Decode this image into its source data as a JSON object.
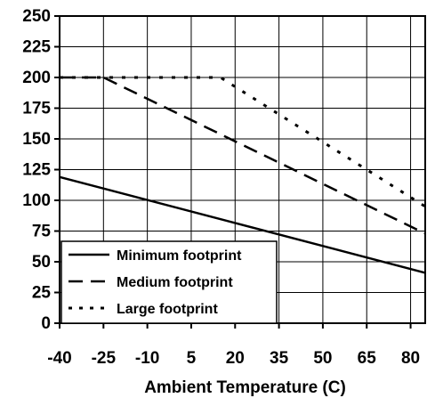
{
  "chart_data": {
    "type": "line",
    "title": "",
    "xlabel": "Ambient Temperature (C)",
    "ylabel": "",
    "xlim": [
      -40,
      85
    ],
    "ylim": [
      0,
      250
    ],
    "xticks": [
      -40,
      -25,
      -10,
      5,
      20,
      35,
      50,
      65,
      80
    ],
    "xtick_labels": [
      "-40",
      "-25",
      "-10",
      "5",
      "20",
      "35",
      "50",
      "65",
      "80"
    ],
    "yticks": [
      0,
      25,
      50,
      75,
      100,
      125,
      150,
      175,
      200,
      225,
      250
    ],
    "ytick_labels": [
      "0",
      "25",
      "50",
      "75",
      "100",
      "125",
      "150",
      "175",
      "200",
      "225",
      "250"
    ],
    "grid": true,
    "legend_position": "bottom-left",
    "series": [
      {
        "name": "Minimum footprint",
        "style": "solid",
        "x": [
          -40,
          85
        ],
        "y": [
          119,
          41
        ]
      },
      {
        "name": "Medium footprint",
        "style": "dashed",
        "x": [
          -40,
          -25,
          85
        ],
        "y": [
          200,
          200,
          73
        ]
      },
      {
        "name": "Large footprint",
        "style": "dotted",
        "x": [
          -40,
          15,
          85
        ],
        "y": [
          200,
          200,
          95
        ]
      }
    ],
    "colors": {
      "line": "#000000",
      "grid": "#000000",
      "background": "#ffffff"
    }
  }
}
